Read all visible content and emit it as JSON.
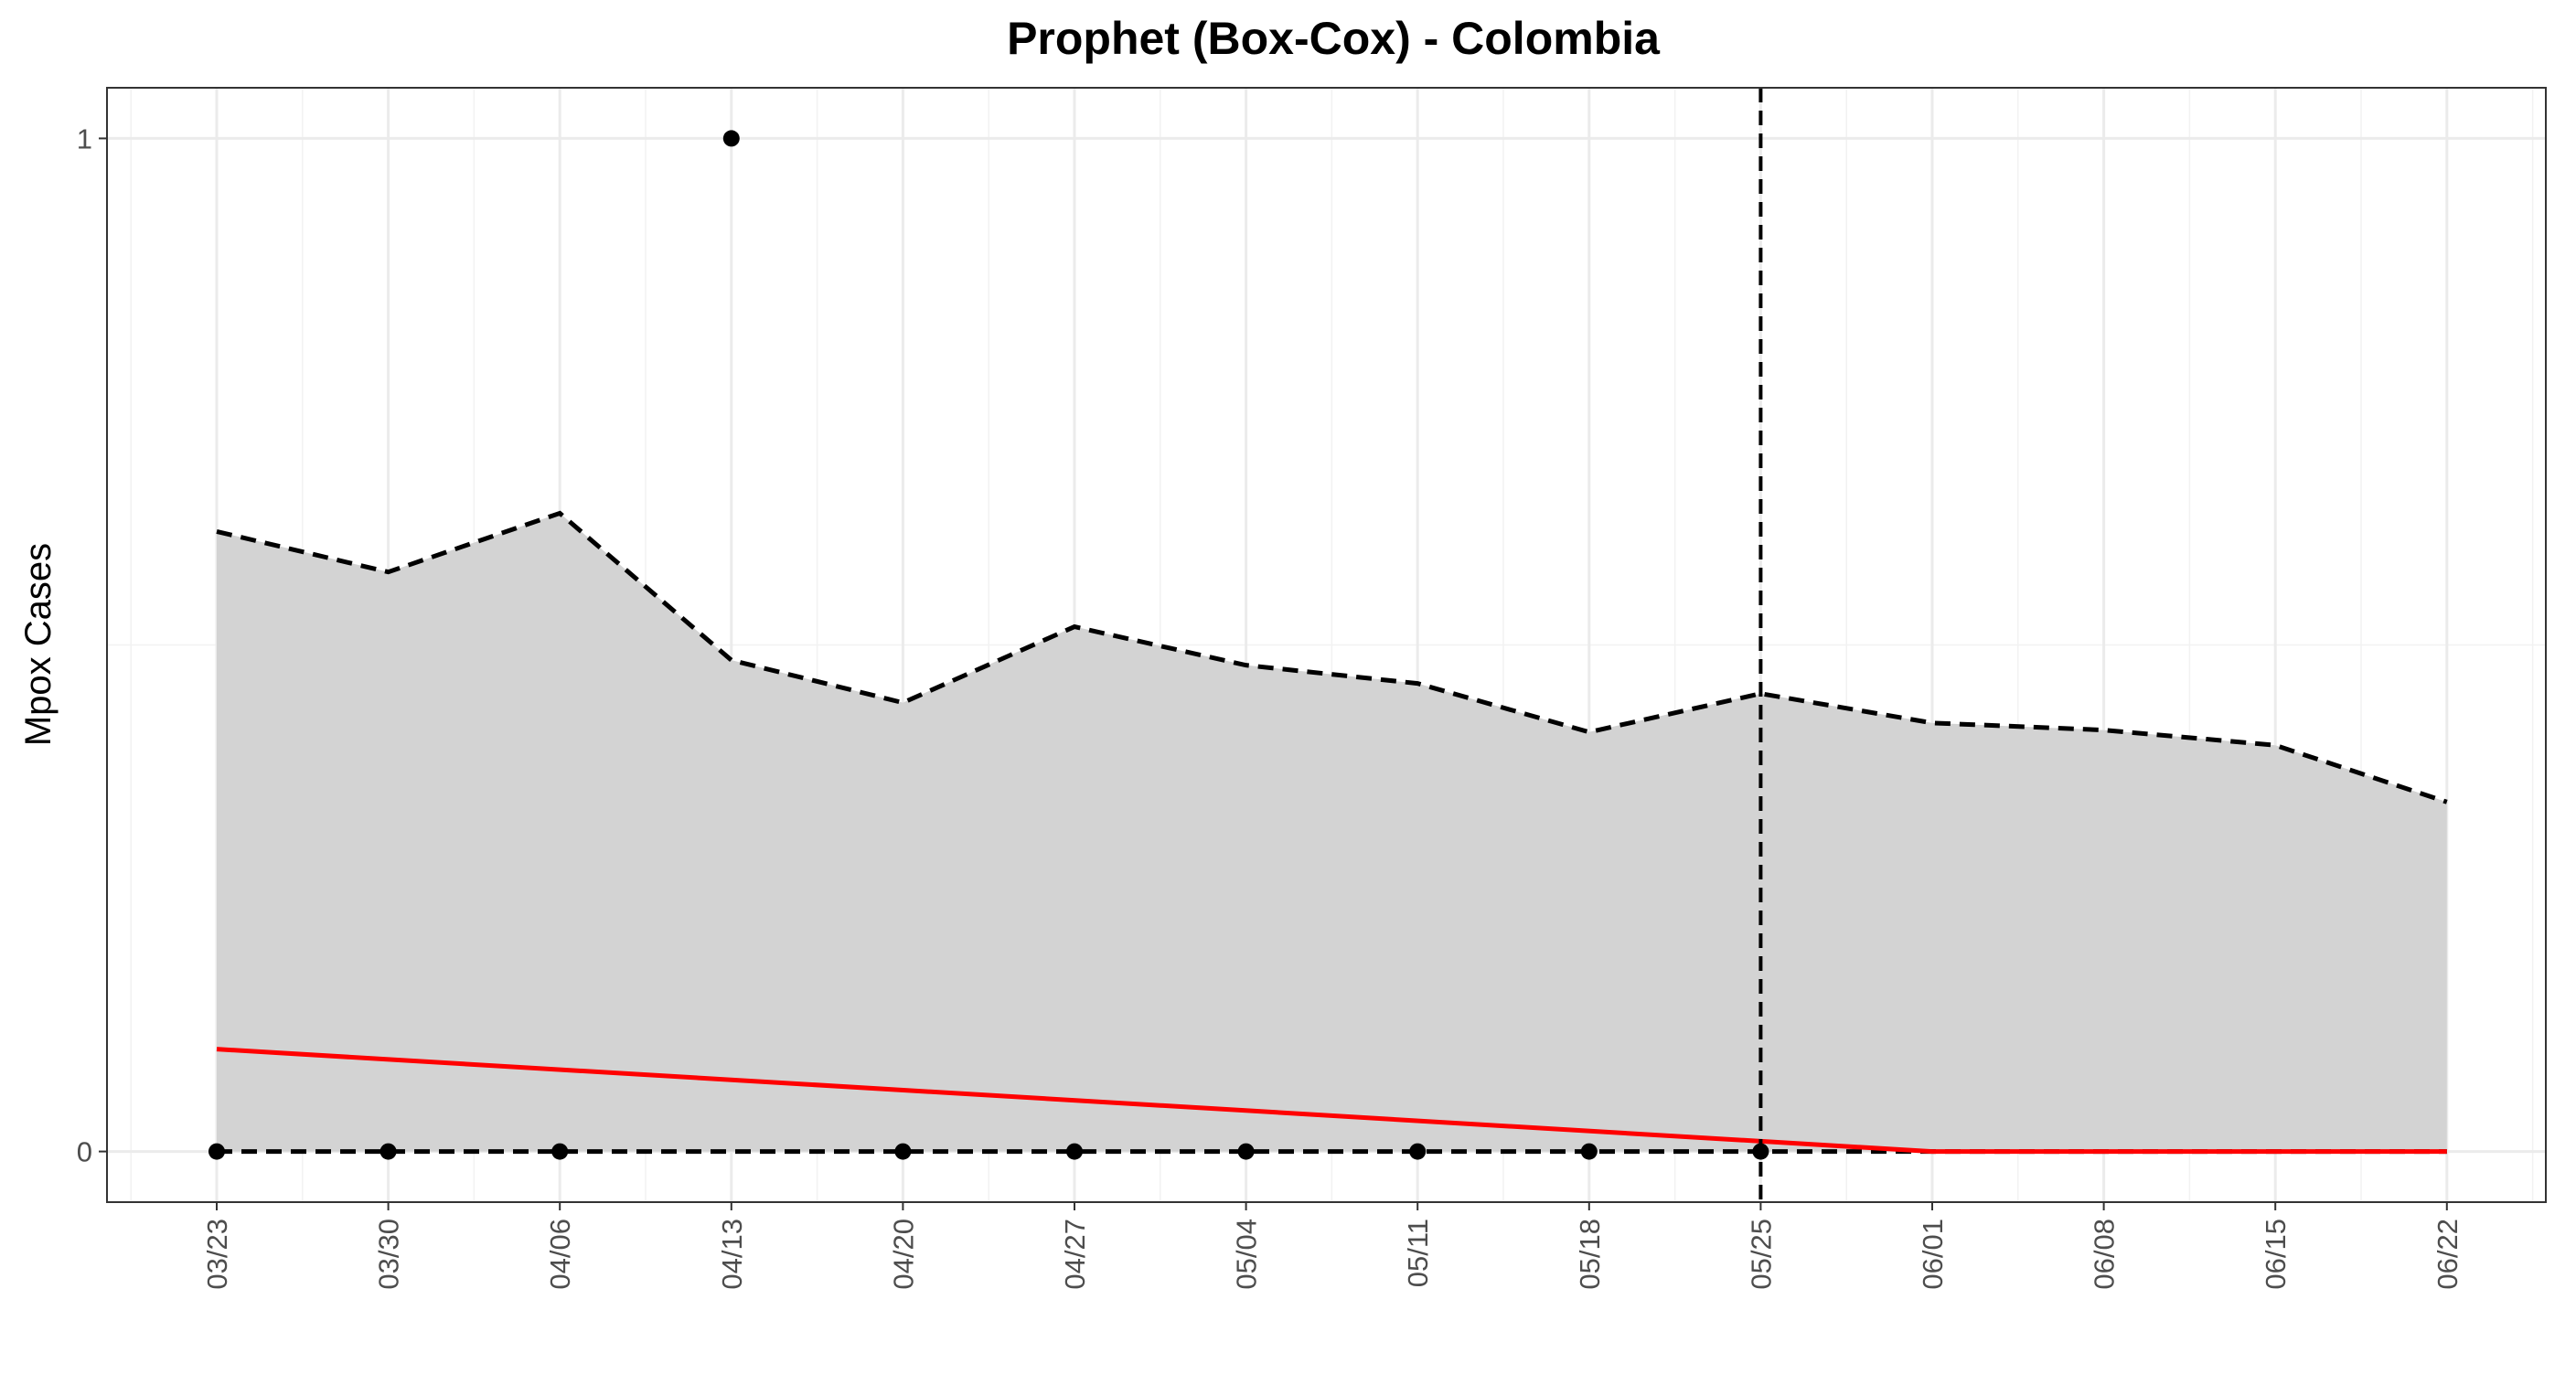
{
  "chart_data": {
    "type": "line",
    "title": "Prophet (Box-Cox) - Colombia",
    "xlabel": "",
    "ylabel": "Mpox Cases",
    "x_ticks": [
      "03/23",
      "03/30",
      "04/06",
      "04/13",
      "04/20",
      "04/27",
      "05/04",
      "05/11",
      "05/18",
      "05/25",
      "06/01",
      "06/08",
      "06/15",
      "06/22"
    ],
    "y_ticks": [
      "0",
      "1"
    ],
    "ylim": [
      -0.05,
      1.05
    ],
    "grid": true,
    "colors": {
      "band": "#d3d3d3",
      "forecast": "#ff0000",
      "points": "#000000",
      "bounds": "#000000",
      "cutoff": "#000000"
    },
    "series": [
      {
        "type": "band",
        "x": [
          "03/23",
          "03/30",
          "04/06",
          "04/13",
          "04/20",
          "04/27",
          "05/04",
          "05/11",
          "05/18",
          "05/25",
          "06/01",
          "06/08",
          "06/15",
          "06/22"
        ],
        "upper": [
          0.612,
          0.572,
          0.63,
          0.485,
          0.443,
          0.518,
          0.48,
          0.462,
          0.414,
          0.452,
          0.423,
          0.416,
          0.401,
          0.345
        ],
        "lower": [
          0,
          0,
          0,
          0,
          0,
          0,
          0,
          0,
          0,
          0,
          0,
          0,
          0,
          0
        ]
      },
      {
        "type": "line",
        "x": [
          "03/23",
          "06/01",
          "06/22"
        ],
        "values": [
          0.101,
          0,
          0
        ]
      },
      {
        "type": "scatter",
        "x": [
          "03/23",
          "03/30",
          "04/06",
          "04/13",
          "04/20",
          "04/27",
          "05/04",
          "05/11",
          "05/18",
          "05/25"
        ],
        "values": [
          0,
          0,
          0,
          1,
          0,
          0,
          0,
          0,
          0,
          0
        ]
      }
    ],
    "vline": {
      "x": "05/25",
      "style": "dashed"
    }
  }
}
